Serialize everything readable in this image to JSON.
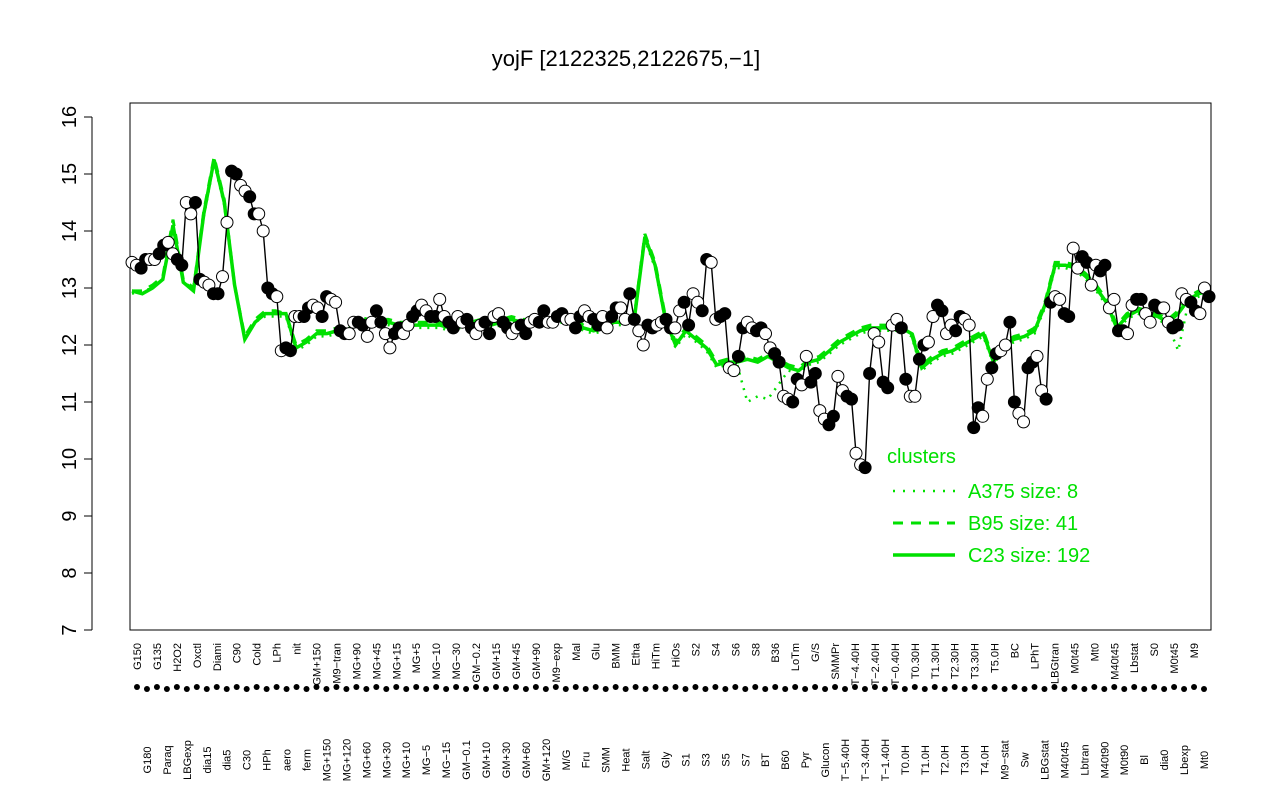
{
  "chart_data": {
    "type": "line",
    "title": "yojF [2122325,2122675,−1]",
    "xlabel": "",
    "ylabel": "",
    "ylim": [
      7,
      16
    ],
    "yticks": [
      7,
      8,
      9,
      10,
      11,
      12,
      13,
      14,
      15,
      16
    ],
    "colors": {
      "cluster_line": "#00e000",
      "points_dark": "#000000",
      "points_light": "#ffffff"
    },
    "x_tick_labels": [
      "G150",
      "G180",
      "G135",
      "Paraq",
      "H2O2",
      "LBGexp",
      "Oxctl",
      "dia15",
      "Diami",
      "dia5",
      "C90",
      "C30",
      "Cold",
      "HPh",
      "LPh",
      "aero",
      "nit",
      "ferm",
      "GM+150",
      "MG+150",
      "M9−tran",
      "MG+120",
      "MG+90",
      "MG+60",
      "MG+45",
      "MG+30",
      "MG+15",
      "MG+10",
      "MG+5",
      "MG−5",
      "MG−10",
      "MG−15",
      "MG−30",
      "GM−0.1",
      "GM−0.2",
      "GM+10",
      "GM+15",
      "GM+30",
      "GM+45",
      "GM+60",
      "GM+90",
      "GM+120",
      "M9−exp",
      "M/G",
      "Mal",
      "Fru",
      "Glu",
      "SMM",
      "BMM",
      "Heat",
      "Etha",
      "Salt",
      "HiTm",
      "Gly",
      "HiOs",
      "S1",
      "S2",
      "S3",
      "S4",
      "S5",
      "S6",
      "S7",
      "S8",
      "BT",
      "B36",
      "B60",
      "LoTm",
      "Pyr",
      "G/S",
      "Glucon",
      "SMMPr",
      "T−5.40H",
      "T−4.40H",
      "T−3.40H",
      "T−2.40H",
      "T−1.40H",
      "T−0.40H",
      "T0.0H",
      "T0.30H",
      "T1.0H",
      "T1.30H",
      "T2.0H",
      "T2.30H",
      "T3.0H",
      "T3.30H",
      "T4.0H",
      "T5.0H",
      "M9−stat",
      "BC",
      "Sw",
      "LPhT",
      "LBGstat",
      "LBGtran",
      "M40t45",
      "M0t45",
      "Lbtran",
      "Mt0",
      "M40t90",
      "M40t45",
      "M0t90",
      "Lbstat",
      "Bl",
      "S0",
      "dia0",
      "M0t45",
      "Lbexp",
      "M9",
      "Mt0"
    ],
    "legend": {
      "title": "clusters",
      "position": "right",
      "entries": [
        {
          "label": "A375 size: 8",
          "style": "dotted"
        },
        {
          "label": "B95 size: 41",
          "style": "dashed"
        },
        {
          "label": "C23 size: 192",
          "style": "solid"
        }
      ]
    },
    "series": [
      {
        "style": "points",
        "values": [
          13.45,
          13.4,
          13.35,
          13.5,
          13.5,
          13.5,
          13.6,
          13.75,
          13.8,
          13.6,
          13.5,
          13.4,
          14.5,
          14.3,
          14.5,
          13.15,
          13.1,
          13.05,
          12.9,
          12.9,
          13.2,
          14.15,
          15.05,
          15.0,
          14.8,
          14.7,
          14.6,
          14.3,
          14.3,
          14.0,
          13.0,
          12.9,
          12.85,
          11.9,
          11.95,
          11.9,
          12.5,
          12.5,
          12.5,
          12.65,
          12.7,
          12.65,
          12.5,
          12.85,
          12.8,
          12.75,
          12.25,
          12.2,
          12.2,
          12.4,
          12.4,
          12.35,
          12.15,
          12.4,
          12.6,
          12.4,
          12.2,
          11.95,
          12.2,
          12.3,
          12.2,
          12.35,
          12.5,
          12.6,
          12.7,
          12.6,
          12.5,
          12.5,
          12.8,
          12.5,
          12.4,
          12.3,
          12.5,
          12.4,
          12.45,
          12.3,
          12.2,
          12.35,
          12.4,
          12.2,
          12.5,
          12.55,
          12.4,
          12.3,
          12.2,
          12.3,
          12.35,
          12.2,
          12.4,
          12.45,
          12.4,
          12.6,
          12.4,
          12.4,
          12.5,
          12.55,
          12.45,
          12.45,
          12.3,
          12.5,
          12.6,
          12.5,
          12.45,
          12.35,
          12.5,
          12.3,
          12.5,
          12.65,
          12.65,
          12.45,
          12.9,
          12.45,
          12.25,
          12.0,
          12.35,
          12.3,
          12.35,
          12.4,
          12.45,
          12.3,
          12.3,
          12.6,
          12.75,
          12.35,
          12.9,
          12.75,
          12.6,
          13.5,
          13.45,
          12.45,
          12.5,
          12.55,
          11.6,
          11.55,
          11.8,
          12.3,
          12.4,
          12.3,
          12.25,
          12.3,
          12.2,
          11.95,
          11.85,
          11.7,
          11.1,
          11.05,
          11.0,
          11.4,
          11.3,
          11.8,
          11.35,
          11.5,
          10.85,
          10.7,
          10.6,
          10.75,
          11.45,
          11.2,
          11.1,
          11.05,
          10.1,
          9.9,
          9.85,
          11.5,
          12.2,
          12.05,
          11.35,
          11.25,
          12.35,
          12.45,
          12.3,
          11.4,
          11.1,
          11.1,
          11.75,
          12.0,
          12.05,
          12.5,
          12.7,
          12.6,
          12.2,
          12.35,
          12.25,
          12.5,
          12.45,
          12.35,
          10.55,
          10.9,
          10.75,
          11.4,
          11.6,
          11.85,
          11.9,
          12.0,
          12.4,
          11.0,
          10.8,
          10.65,
          11.6,
          11.7,
          11.8,
          11.2,
          11.05,
          12.75,
          12.85,
          12.8,
          12.55,
          12.5,
          13.7,
          13.35,
          13.55,
          13.45,
          13.05,
          13.4,
          13.3,
          13.4,
          12.65,
          12.8,
          12.25,
          12.25,
          12.2,
          12.7,
          12.8,
          12.8,
          12.55,
          12.4,
          12.7,
          12.65,
          12.65,
          12.4,
          12.3,
          12.35,
          12.9,
          12.8,
          12.75,
          12.6,
          12.55,
          13.0,
          12.85
        ]
      },
      {
        "name": "C23",
        "style": "solid",
        "values": [
          12.95,
          12.9,
          13.0,
          13.15,
          14.1,
          13.1,
          12.95,
          14.3,
          15.25,
          14.5,
          13.05,
          12.1,
          12.4,
          12.55,
          12.55,
          12.55,
          11.95,
          12.05,
          12.2,
          12.2,
          12.25,
          12.25,
          12.45,
          12.4,
          12.4,
          12.4,
          12.35,
          12.35,
          12.35,
          12.35,
          12.35,
          12.3,
          12.35,
          12.35,
          12.4,
          12.35,
          12.4,
          12.45,
          12.4,
          12.4,
          12.4,
          12.4,
          12.45,
          12.45,
          12.3,
          12.25,
          12.3,
          12.4,
          12.4,
          12.5,
          13.9,
          13.4,
          12.45,
          12.0,
          12.25,
          12.1,
          11.95,
          11.65,
          11.7,
          11.7,
          11.75,
          11.7,
          11.8,
          11.7,
          11.6,
          11.55,
          11.7,
          11.75,
          11.9,
          12.05,
          12.15,
          12.25,
          12.3,
          12.3,
          12.3,
          12.3,
          12.2,
          11.6,
          11.75,
          11.85,
          11.9,
          12.0,
          12.1,
          12.2,
          11.7,
          12.0,
          12.1,
          12.15,
          12.25,
          12.7,
          13.4,
          13.4,
          13.35,
          13.2,
          13.0,
          12.75,
          12.3,
          12.5,
          12.6,
          12.55,
          12.5,
          12.4,
          12.55,
          12.8,
          12.9,
          12.95
        ]
      },
      {
        "name": "B95",
        "style": "dashed",
        "values": [
          12.95,
          12.95,
          13.05,
          13.2,
          14.2,
          13.15,
          13.0,
          14.35,
          15.3,
          14.55,
          13.05,
          12.15,
          12.45,
          12.6,
          12.6,
          12.55,
          12.0,
          12.1,
          12.25,
          12.25,
          12.3,
          12.3,
          12.5,
          12.45,
          12.45,
          12.45,
          12.4,
          12.4,
          12.4,
          12.4,
          12.4,
          12.35,
          12.4,
          12.4,
          12.45,
          12.4,
          12.45,
          12.5,
          12.45,
          12.45,
          12.45,
          12.45,
          12.5,
          12.5,
          12.35,
          12.3,
          12.35,
          12.45,
          12.45,
          12.55,
          13.95,
          13.45,
          12.5,
          12.05,
          12.3,
          12.15,
          12.0,
          11.7,
          11.75,
          11.75,
          11.8,
          11.75,
          11.85,
          11.75,
          11.65,
          11.6,
          11.75,
          11.8,
          11.95,
          12.1,
          12.2,
          12.3,
          12.35,
          12.35,
          12.35,
          12.35,
          12.25,
          11.65,
          11.8,
          11.9,
          11.95,
          12.05,
          12.15,
          12.25,
          11.75,
          12.05,
          12.15,
          12.2,
          12.3,
          12.75,
          13.45,
          13.45,
          13.4,
          13.25,
          13.05,
          12.8,
          12.35,
          12.55,
          12.65,
          12.6,
          12.55,
          12.45,
          12.6,
          12.85,
          12.95,
          13.0
        ]
      },
      {
        "name": "A375",
        "style": "dotted",
        "values": [
          12.9,
          12.95,
          13.0,
          13.15,
          14.1,
          13.1,
          13.0,
          14.25,
          15.2,
          14.45,
          13.0,
          12.1,
          12.4,
          12.5,
          12.5,
          12.5,
          11.9,
          12.0,
          12.15,
          12.15,
          12.2,
          12.2,
          12.4,
          12.35,
          12.35,
          12.35,
          12.3,
          12.3,
          12.3,
          12.3,
          12.3,
          12.25,
          12.3,
          12.3,
          12.35,
          12.3,
          12.35,
          12.4,
          12.35,
          12.35,
          12.35,
          12.35,
          12.4,
          12.4,
          12.25,
          12.2,
          12.25,
          12.35,
          12.35,
          12.45,
          13.85,
          13.35,
          12.4,
          11.95,
          12.2,
          12.05,
          11.9,
          11.6,
          11.65,
          11.65,
          11.0,
          11.1,
          11.05,
          11.3,
          11.55,
          11.5,
          11.65,
          11.7,
          11.85,
          12.0,
          12.1,
          12.2,
          12.25,
          12.25,
          12.25,
          12.25,
          12.15,
          11.55,
          11.7,
          11.8,
          11.85,
          11.95,
          12.05,
          12.15,
          11.65,
          11.95,
          12.05,
          12.1,
          12.2,
          12.65,
          13.35,
          13.35,
          13.3,
          13.15,
          12.95,
          12.7,
          12.25,
          12.45,
          12.55,
          12.5,
          12.45,
          12.35,
          11.9,
          12.75,
          12.85,
          12.9
        ]
      }
    ]
  }
}
